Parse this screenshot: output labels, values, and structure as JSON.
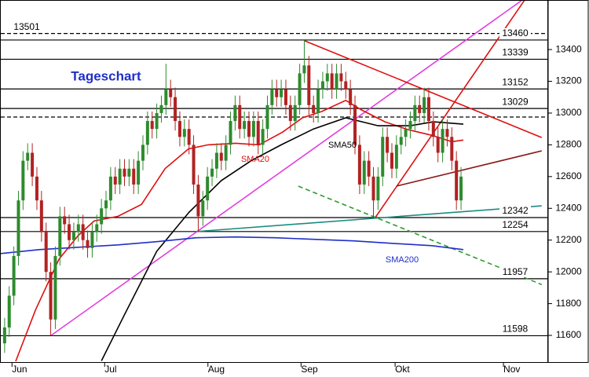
{
  "chart_data": {
    "type": "candlestick",
    "title": "Tageschart",
    "open": [
      11550,
      11650,
      11850,
      12100,
      12450,
      12700,
      12750,
      12600,
      12450,
      12250,
      12000,
      11700,
      12100,
      12350,
      12300,
      12200,
      12250,
      12300,
      12200,
      12150,
      12250,
      12300,
      12400,
      12450,
      12600,
      12550,
      12650,
      12600,
      12650,
      12550,
      12700,
      12800,
      12950,
      12900,
      13000,
      13050,
      13150,
      13100,
      12950,
      12850,
      12900,
      12800,
      12550,
      12350,
      12450,
      12600,
      12650,
      12750,
      12700,
      12800,
      12950,
      13050,
      12900,
      12950,
      12850,
      12950,
      12800,
      12900,
      13050,
      13150,
      13100,
      13150,
      13050,
      12950,
      13050,
      13250,
      13300,
      13050,
      13000,
      13150,
      13200,
      13250,
      13150,
      13250,
      13200,
      13150,
      13050,
      12800,
      12550,
      12700,
      12600,
      12450,
      12600,
      12850,
      12750,
      12650,
      12800,
      12850,
      12900,
      12950,
      13050,
      13000,
      13100,
      12950,
      12850,
      12750,
      12900,
      12850,
      12700,
      12450
    ],
    "high": [
      11710,
      11910,
      12160,
      12510,
      12760,
      12810,
      12810,
      12660,
      12510,
      12310,
      12060,
      12160,
      12410,
      12410,
      12360,
      12310,
      12360,
      12360,
      12260,
      12310,
      12360,
      12460,
      12510,
      12660,
      12660,
      12710,
      12710,
      12710,
      12710,
      12760,
      12860,
      13010,
      13010,
      13060,
      13110,
      13310,
      13210,
      13160,
      13010,
      12960,
      12960,
      12860,
      12610,
      12510,
      12660,
      12710,
      12810,
      12810,
      12860,
      13010,
      13110,
      13110,
      13010,
      13010,
      13010,
      13010,
      12960,
      13110,
      13210,
      13210,
      13210,
      13210,
      13110,
      13110,
      13310,
      13460,
      13360,
      13110,
      13210,
      13260,
      13310,
      13310,
      13310,
      13310,
      13260,
      13210,
      13110,
      12860,
      12760,
      12760,
      12660,
      12660,
      12910,
      12910,
      12810,
      12860,
      12910,
      12960,
      13010,
      13110,
      13110,
      13160,
      13160,
      13010,
      12910,
      12960,
      12960,
      12910,
      12760,
      12660
    ],
    "low": [
      11490,
      11590,
      11790,
      12040,
      12390,
      12640,
      12540,
      12390,
      12190,
      11940,
      11600,
      11640,
      12040,
      12240,
      12140,
      12140,
      12190,
      12140,
      12090,
      12090,
      12190,
      12240,
      12340,
      12390,
      12490,
      12490,
      12540,
      12540,
      12490,
      12490,
      12640,
      12740,
      12840,
      12840,
      12940,
      12990,
      13040,
      12890,
      12790,
      12790,
      12740,
      12490,
      12250,
      12290,
      12390,
      12540,
      12590,
      12640,
      12640,
      12740,
      12890,
      12840,
      12840,
      12790,
      12790,
      12740,
      12740,
      12840,
      12990,
      13040,
      13040,
      12990,
      12890,
      12890,
      12990,
      13190,
      12990,
      12940,
      12940,
      13090,
      13140,
      13090,
      13090,
      13140,
      13090,
      12990,
      12740,
      12490,
      12490,
      12540,
      12342,
      12390,
      12540,
      12690,
      12590,
      12590,
      12740,
      12790,
      12840,
      12890,
      12940,
      12940,
      12890,
      12790,
      12690,
      12690,
      12790,
      12640,
      12390,
      12390
    ],
    "close": [
      11650,
      11850,
      12100,
      12450,
      12700,
      12750,
      12600,
      12450,
      12250,
      12000,
      11700,
      12100,
      12350,
      12300,
      12200,
      12250,
      12300,
      12200,
      12150,
      12250,
      12300,
      12400,
      12450,
      12600,
      12550,
      12650,
      12600,
      12650,
      12550,
      12700,
      12800,
      12950,
      12900,
      13000,
      13050,
      13150,
      13100,
      12950,
      12850,
      12900,
      12800,
      12550,
      12350,
      12450,
      12600,
      12650,
      12750,
      12700,
      12800,
      12950,
      13050,
      12900,
      12950,
      12850,
      12950,
      12800,
      12900,
      13050,
      13150,
      13100,
      13150,
      13050,
      12950,
      13050,
      13250,
      13300,
      13050,
      13000,
      13150,
      13200,
      13250,
      13150,
      13250,
      13200,
      13150,
      13050,
      12800,
      12550,
      12700,
      12600,
      12450,
      12600,
      12850,
      12750,
      12650,
      12800,
      12850,
      12900,
      12950,
      13050,
      13000,
      13100,
      12950,
      12850,
      12750,
      12900,
      12850,
      12700,
      12450,
      12600
    ],
    "up_color": "#2e8b2e",
    "down_color": "#b22222",
    "xlim": [
      -1,
      117.9
    ],
    "xticks": [
      {
        "value": 1.6,
        "label": "Jun"
      },
      {
        "value": 21.7,
        "label": "Jul"
      },
      {
        "value": 44.1,
        "label": "Aug"
      },
      {
        "value": 64.3,
        "label": "Sep"
      },
      {
        "value": 84.7,
        "label": "Okt"
      },
      {
        "value": 108.2,
        "label": "Nov"
      }
    ],
    "ylim": [
      11427,
      13712
    ],
    "yticks": [
      11600,
      11800,
      12000,
      12200,
      12400,
      12600,
      12800,
      13000,
      13200,
      13400
    ],
    "levels": [
      {
        "value": 13501,
        "dashed": true,
        "label_side": "left"
      },
      {
        "value": 13460,
        "dashed": false,
        "label_side": "right"
      },
      {
        "value": 13339,
        "dashed": false,
        "label_side": "right"
      },
      {
        "value": 13152,
        "dashed": false,
        "label_side": "right"
      },
      {
        "value": 13029,
        "dashed": false,
        "label_side": "right"
      },
      {
        "value": 12975,
        "dashed": true
      },
      {
        "value": 12342,
        "dashed": false,
        "label_side": "right"
      },
      {
        "value": 12254,
        "dashed": false,
        "label_side": "right"
      },
      {
        "value": 11957,
        "dashed": false,
        "label_side": "right"
      },
      {
        "value": 11598,
        "dashed": false,
        "label_side": "right"
      }
    ],
    "sma": [
      {
        "name": "SMA20",
        "color": "#e01010",
        "x": [
          2.4,
          6.7,
          11.8,
          16,
          19.4,
          24.6,
          29.7,
          34.8,
          39.9,
          44.1,
          50.1,
          55.2,
          60.3,
          64.6,
          68.8,
          74,
          77.4,
          82.5,
          87.6,
          92.7,
          97,
          99.5
        ],
        "values": [
          11437,
          11760,
          12080,
          12230,
          12320,
          12350,
          12425,
          12650,
          12775,
          12800,
          12810,
          12800,
          12880,
          12970,
          13010,
          13080,
          13020,
          12945,
          12895,
          12860,
          12820,
          12830
        ]
      },
      {
        "name": "SMA50",
        "color": "#000000",
        "x": [
          21,
          26,
          33,
          40,
          47,
          53.5,
          60,
          67,
          74,
          81,
          88,
          93,
          99.5
        ],
        "values": [
          11440,
          11730,
          12130,
          12375,
          12575,
          12700,
          12800,
          12900,
          12970,
          12920,
          12920,
          12945,
          12930
        ]
      },
      {
        "name": "SMA200",
        "color": "#1f2fc8",
        "x": [
          -1,
          7.5,
          16,
          24.6,
          33,
          41.6,
          50,
          58.6,
          67,
          75.7,
          84,
          92.7,
          99.5
        ],
        "values": [
          12115,
          12140,
          12155,
          12170,
          12190,
          12215,
          12220,
          12215,
          12205,
          12195,
          12180,
          12165,
          12140
        ]
      }
    ],
    "trendlines": [
      {
        "color": "#e040e0",
        "dashed": false,
        "x": [
          10.1,
          112.3
        ],
        "y": [
          11600,
          13712
        ]
      },
      {
        "color": "#e01010",
        "dashed": false,
        "x": [
          65.1,
          116.5
        ],
        "y": [
          13455,
          12846
        ]
      },
      {
        "color": "#e01010",
        "dashed": false,
        "x": [
          80.4,
          112.8
        ],
        "y": [
          12342,
          13712
        ]
      },
      {
        "color": "#8b1a1a",
        "dashed": false,
        "x": [
          85,
          116.5
        ],
        "y": [
          12540,
          12762
        ]
      },
      {
        "color": "#1a8c80",
        "dashed": false,
        "x": [
          41.6,
          116.5
        ],
        "y": [
          12254,
          12416
        ]
      },
      {
        "color": "#2e9a2e",
        "dashed": true,
        "x": [
          63.7,
          116.5
        ],
        "y": [
          12540,
          11920
        ]
      }
    ]
  }
}
